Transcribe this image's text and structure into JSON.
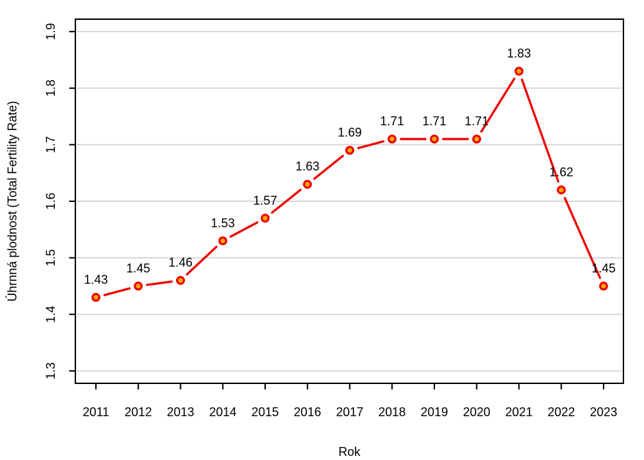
{
  "chart_data": {
    "type": "line",
    "title": "",
    "xlabel": "Rok",
    "ylabel": "Úhrnná plodnost (Total Fertility Rate)",
    "categories": [
      "2011",
      "2012",
      "2013",
      "2014",
      "2015",
      "2016",
      "2017",
      "2018",
      "2019",
      "2020",
      "2021",
      "2022",
      "2023"
    ],
    "series": [
      {
        "name": "Total Fertility Rate",
        "values": [
          1.43,
          1.45,
          1.46,
          1.53,
          1.57,
          1.63,
          1.69,
          1.71,
          1.71,
          1.71,
          1.83,
          1.62,
          1.45
        ],
        "point_labels": [
          "1.43",
          "1.45",
          "1.46",
          "1.53",
          "1.57",
          "1.63",
          "1.69",
          "1.71",
          "1.71",
          "1.71",
          "1.83",
          "1.62",
          "1.45"
        ]
      }
    ],
    "yticks": [
      "1.3",
      "1.4",
      "1.5",
      "1.6",
      "1.7",
      "1.8",
      "1.9"
    ],
    "ytick_values": [
      1.3,
      1.4,
      1.5,
      1.6,
      1.7,
      1.8,
      1.9
    ],
    "ylim": [
      1.278,
      1.922
    ],
    "grid": "horizontal",
    "legend": "none",
    "colors": {
      "line": "#EE0000",
      "marker_fill": "#FFA500",
      "marker_stroke": "#EE0000",
      "grid": "#D3D3D3",
      "axis": "#000000",
      "text": "#000000",
      "background": "#FFFFFF"
    }
  }
}
